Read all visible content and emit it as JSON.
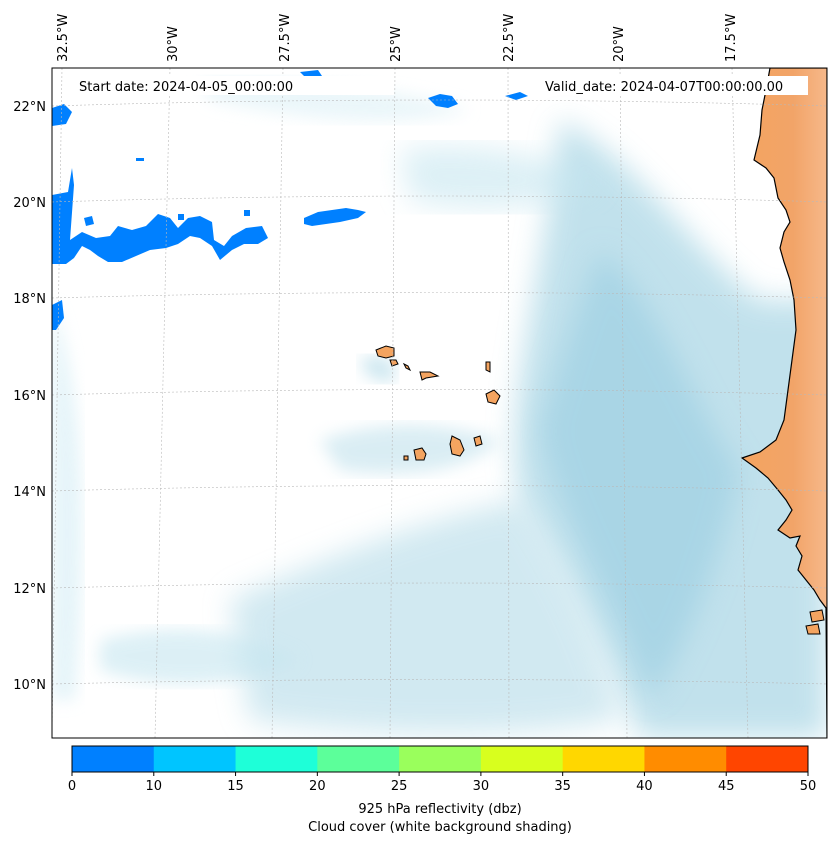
{
  "header": {
    "start_date": "Start date: 2024-04-05_00:00:00",
    "valid_date": "Valid_date: 2024-04-07T00:00:00.00"
  },
  "map": {
    "lon_labels": [
      "32.5°W",
      "30°W",
      "27.5°W",
      "25°W",
      "22.5°W",
      "20°W",
      "17.5°W"
    ],
    "lat_labels": [
      "22°N",
      "20°N",
      "18°N",
      "16°N",
      "14°N",
      "12°N",
      "10°N"
    ],
    "land_color": "#f4a460",
    "reflectivity_color": "#0080ff",
    "cloud_color": "#add8e6"
  },
  "colorbar": {
    "ticks": [
      "0",
      "10",
      "15",
      "20",
      "25",
      "30",
      "35",
      "40",
      "45",
      "50"
    ],
    "colors": [
      "#0080ff",
      "#00c5ff",
      "#1effd8",
      "#5cff9a",
      "#9aff5c",
      "#d8ff1e",
      "#ffd700",
      "#ff8c00",
      "#ff4500"
    ],
    "label_line1": "925 hPa reflectivity (dbz)",
    "label_line2": "Cloud cover (white background shading)"
  }
}
